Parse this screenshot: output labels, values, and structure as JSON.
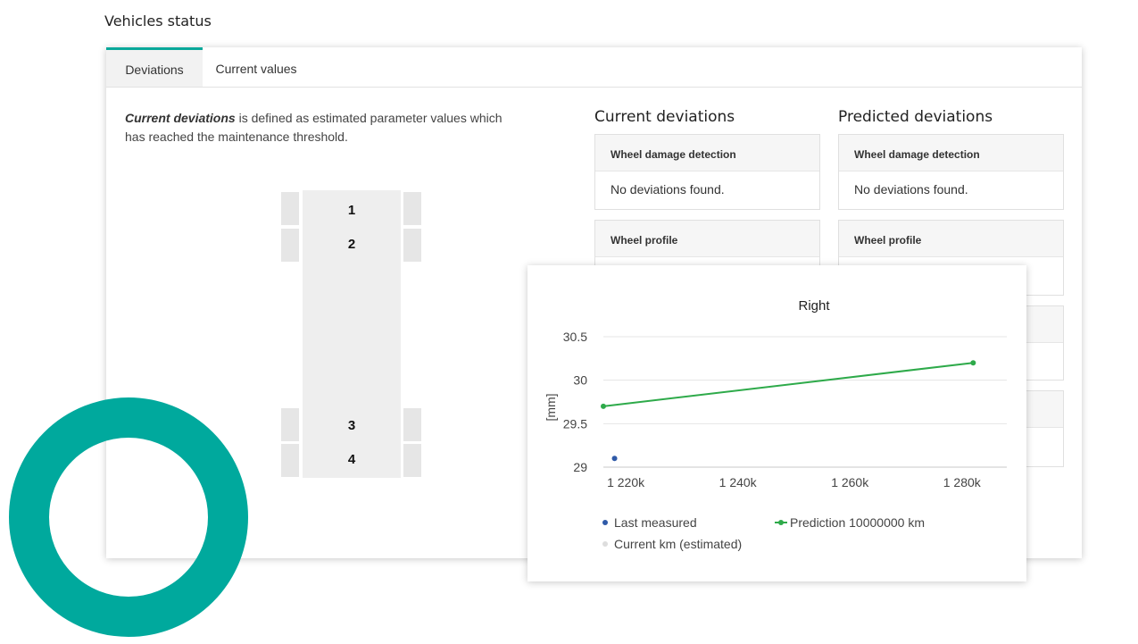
{
  "page": {
    "title": "Vehicles status"
  },
  "tabs": [
    {
      "label": "Deviations",
      "active": true
    },
    {
      "label": "Current values",
      "active": false
    }
  ],
  "description": {
    "emphasis": "Current deviations",
    "text": " is defined as estimated parameter values which has reached the maintenance threshold."
  },
  "axles": [
    "1",
    "2",
    "3",
    "4"
  ],
  "current": {
    "title": "Current deviations",
    "cards": [
      {
        "header": "Wheel damage detection",
        "body": "No deviations found."
      },
      {
        "header": "Wheel profile",
        "body": ""
      }
    ]
  },
  "predicted": {
    "title": "Predicted deviations",
    "cards": [
      {
        "header": "Wheel damage detection",
        "body": "No deviations found."
      },
      {
        "header": "Wheel profile",
        "body": ""
      }
    ]
  },
  "colors": {
    "accent": "#00a99d",
    "prediction": "#2eaa4a",
    "measured": "#2f5aa8",
    "estimated": "#dddddd"
  },
  "chart_data": {
    "type": "line",
    "title": "Right",
    "ylabel": "[mm]",
    "xlabel": "",
    "xlim": [
      1216000,
      1288000
    ],
    "ylim": [
      29,
      30.5
    ],
    "x_ticks": [
      1220000,
      1240000,
      1260000,
      1280000
    ],
    "x_tick_labels": [
      "1 220k",
      "1 240k",
      "1 260k",
      "1 280k"
    ],
    "y_ticks": [
      29,
      29.5,
      30,
      30.5
    ],
    "y_tick_labels": [
      "29",
      "29.5",
      "30",
      "30.5"
    ],
    "grid": true,
    "legend_position": "bottom",
    "series": [
      {
        "name": "Last measured",
        "kind": "scatter",
        "color": "#2f5aa8",
        "points": [
          [
            1218000,
            29.1
          ]
        ]
      },
      {
        "name": "Prediction 10000000 km",
        "kind": "line",
        "color": "#2eaa4a",
        "points": [
          [
            1216000,
            29.7
          ],
          [
            1282000,
            30.2
          ]
        ]
      },
      {
        "name": "Current km (estimated)",
        "kind": "scatter",
        "color": "#dddddd",
        "points": []
      }
    ]
  }
}
